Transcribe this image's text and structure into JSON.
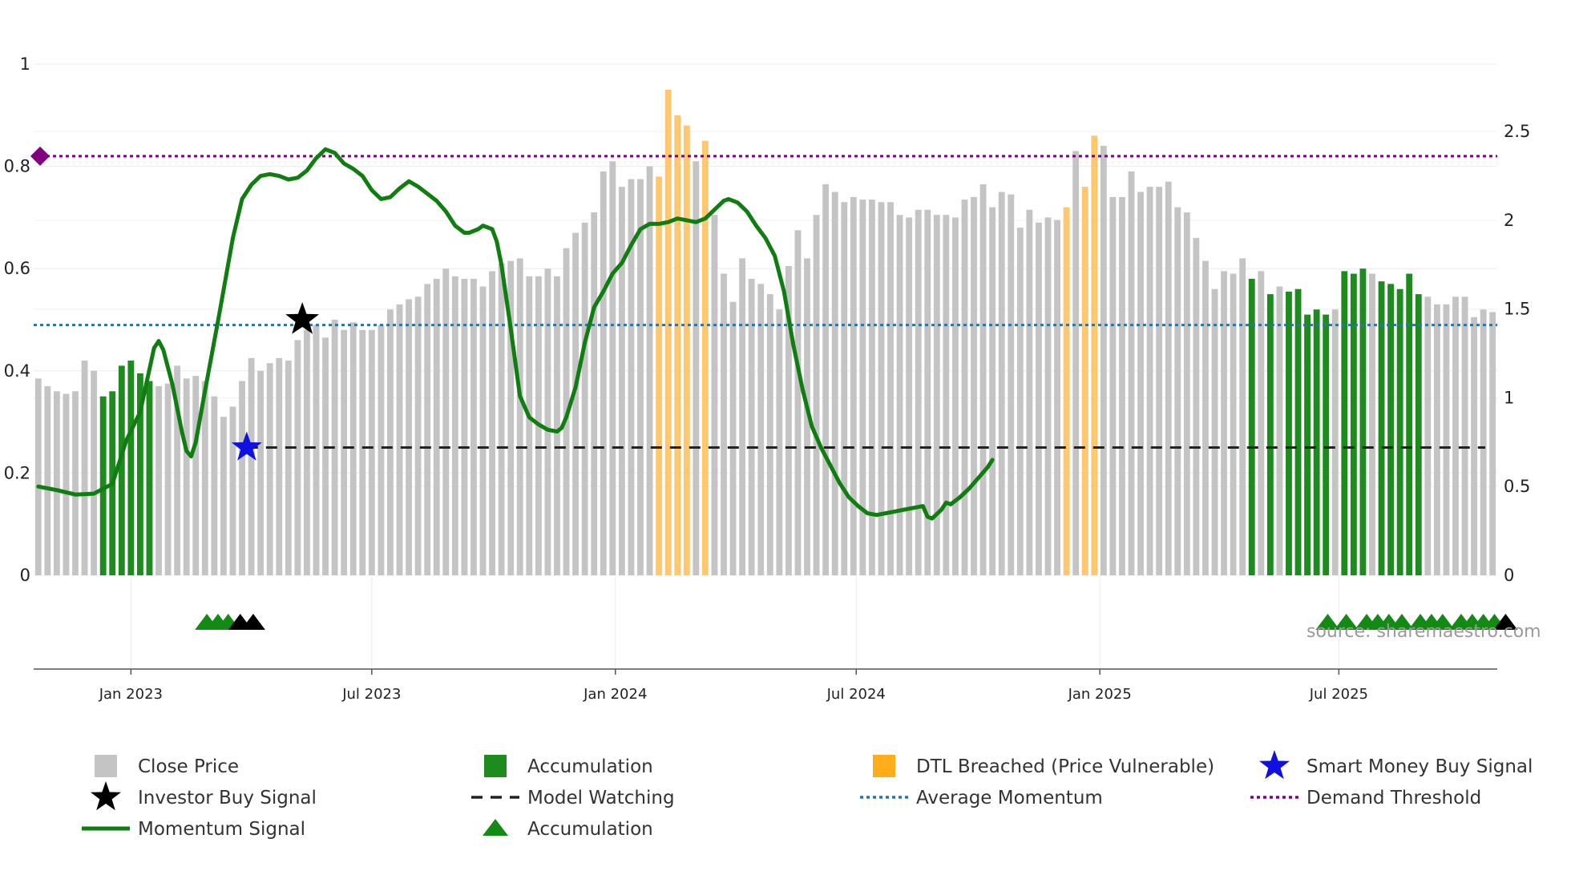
{
  "chart_data": {
    "type": "bar",
    "source": "source: sharemaestro.com",
    "left_axis": {
      "ylim": [
        0,
        1
      ],
      "ticks": [
        "0",
        "0.2",
        "0.4",
        "0.6",
        "0.8",
        "1"
      ],
      "tick_values": [
        0,
        0.2,
        0.4,
        0.6,
        0.8,
        1
      ]
    },
    "right_axis": {
      "ylim": [
        0,
        2.88
      ],
      "ticks": [
        "0",
        "0.5",
        "1",
        "1.5",
        "2",
        "2.5"
      ],
      "tick_values": [
        0,
        0.5,
        1,
        1.5,
        2,
        2.5
      ]
    },
    "x_axis": {
      "start_week_offset": -10,
      "end_week_offset": 150,
      "ticks": [
        {
          "label": "Jan 2023",
          "week": 0
        },
        {
          "label": "Jul 2023",
          "week": 26
        },
        {
          "label": "Jan 2024",
          "week": 52.3
        },
        {
          "label": "Jul 2024",
          "week": 78.3
        },
        {
          "label": "Jan 2025",
          "week": 104.6
        },
        {
          "label": "Jul 2025",
          "week": 130.4
        }
      ]
    },
    "close_price": [
      0.385,
      0.37,
      0.36,
      0.355,
      0.36,
      0.42,
      0.4,
      0.35,
      0.36,
      0.41,
      0.42,
      0.395,
      0.38,
      0.37,
      0.375,
      0.41,
      0.385,
      0.39,
      0.38,
      0.35,
      0.31,
      0.33,
      0.38,
      0.425,
      0.4,
      0.415,
      0.425,
      0.42,
      0.46,
      0.48,
      0.49,
      0.465,
      0.5,
      0.48,
      0.495,
      0.48,
      0.48,
      0.49,
      0.52,
      0.53,
      0.54,
      0.545,
      0.57,
      0.58,
      0.6,
      0.585,
      0.58,
      0.58,
      0.565,
      0.595,
      0.61,
      0.615,
      0.62,
      0.585,
      0.585,
      0.6,
      0.585,
      0.64,
      0.67,
      0.69,
      0.71,
      0.79,
      0.81,
      0.76,
      0.775,
      0.775,
      0.8,
      0.78,
      0.95,
      0.9,
      0.88,
      0.81,
      0.85,
      0.705,
      0.59,
      0.535,
      0.62,
      0.58,
      0.57,
      0.55,
      0.52,
      0.605,
      0.675,
      0.62,
      0.705,
      0.765,
      0.75,
      0.73,
      0.74,
      0.735,
      0.735,
      0.73,
      0.73,
      0.705,
      0.7,
      0.715,
      0.715,
      0.705,
      0.705,
      0.7,
      0.735,
      0.74,
      0.765,
      0.72,
      0.75,
      0.745,
      0.68,
      0.715,
      0.69,
      0.7,
      0.695,
      0.72,
      0.83,
      0.76,
      0.86,
      0.84,
      0.74,
      0.74,
      0.79,
      0.75,
      0.76,
      0.76,
      0.77,
      0.72,
      0.71,
      0.66,
      0.615,
      0.56,
      0.595,
      0.59,
      0.62,
      0.58,
      0.595,
      0.55,
      0.565,
      0.555,
      0.56,
      0.51,
      0.52,
      0.51,
      0.52,
      0.595,
      0.59,
      0.6,
      0.59,
      0.575,
      0.57,
      0.56,
      0.59,
      0.55,
      0.545,
      0.53,
      0.53,
      0.545,
      0.545,
      0.505,
      0.52,
      0.515
    ],
    "accumulation_weeks": [
      7,
      8,
      9,
      10,
      11,
      12,
      131,
      133,
      135,
      136,
      137,
      138,
      139,
      141,
      142,
      143,
      145,
      146,
      147,
      148,
      149
    ],
    "dtl_breached_weeks": [
      67,
      68,
      69,
      70,
      72,
      111,
      113,
      114
    ],
    "momentum_signal": [
      [
        0,
        0.5
      ],
      [
        4,
        0.48
      ],
      [
        8,
        0.455
      ],
      [
        12,
        0.46
      ],
      [
        16,
        0.515
      ],
      [
        19,
        0.76
      ],
      [
        22,
        0.92
      ],
      [
        25,
        1.28
      ],
      [
        26,
        1.32
      ],
      [
        27,
        1.27
      ],
      [
        29,
        1.07
      ],
      [
        31,
        0.81
      ],
      [
        32,
        0.7
      ],
      [
        33,
        0.67
      ],
      [
        34,
        0.75
      ],
      [
        36,
        1.04
      ],
      [
        39,
        1.46
      ],
      [
        42,
        1.9
      ],
      [
        44,
        2.12
      ],
      [
        46,
        2.2
      ],
      [
        48,
        2.25
      ],
      [
        50,
        2.26
      ],
      [
        52,
        2.25
      ],
      [
        54,
        2.23
      ],
      [
        56,
        2.24
      ],
      [
        58,
        2.28
      ],
      [
        60,
        2.35
      ],
      [
        62,
        2.4
      ],
      [
        64,
        2.38
      ],
      [
        66,
        2.32
      ],
      [
        68,
        2.29
      ],
      [
        70,
        2.25
      ],
      [
        72,
        2.17
      ],
      [
        74,
        2.12
      ],
      [
        76,
        2.13
      ],
      [
        78,
        2.18
      ],
      [
        80,
        2.22
      ],
      [
        82,
        2.19
      ],
      [
        84,
        2.15
      ],
      [
        86,
        2.11
      ],
      [
        88,
        2.05
      ],
      [
        90,
        1.97
      ],
      [
        92,
        1.93
      ],
      [
        93,
        1.93
      ],
      [
        95,
        1.95
      ],
      [
        96,
        1.97
      ],
      [
        98,
        1.95
      ],
      [
        99,
        1.88
      ],
      [
        100,
        1.75
      ],
      [
        102,
        1.39
      ],
      [
        104,
        1.01
      ],
      [
        106,
        0.89
      ],
      [
        108,
        0.85
      ],
      [
        110,
        0.82
      ],
      [
        112,
        0.81
      ],
      [
        113,
        0.83
      ],
      [
        114,
        0.89
      ],
      [
        116,
        1.06
      ],
      [
        118,
        1.31
      ],
      [
        120,
        1.51
      ],
      [
        122,
        1.6
      ],
      [
        124,
        1.7
      ],
      [
        126,
        1.76
      ],
      [
        128,
        1.86
      ],
      [
        130,
        1.95
      ],
      [
        132,
        1.98
      ],
      [
        134,
        1.98
      ],
      [
        136,
        1.99
      ],
      [
        138,
        2.01
      ],
      [
        140,
        2.0
      ],
      [
        142,
        1.99
      ],
      [
        144,
        2.01
      ],
      [
        146,
        2.06
      ],
      [
        148,
        2.11
      ],
      [
        149,
        2.12
      ],
      [
        151,
        2.1
      ],
      [
        153,
        2.05
      ],
      [
        155,
        1.97
      ],
      [
        157,
        1.9
      ],
      [
        159,
        1.8
      ],
      [
        161,
        1.6
      ],
      [
        163,
        1.3
      ],
      [
        165,
        1.05
      ],
      [
        167,
        0.84
      ],
      [
        169,
        0.72
      ],
      [
        171,
        0.62
      ],
      [
        173,
        0.52
      ],
      [
        175,
        0.44
      ],
      [
        177,
        0.39
      ],
      [
        179,
        0.35
      ],
      [
        181,
        0.34
      ],
      [
        183,
        0.35
      ],
      [
        185,
        0.36
      ],
      [
        187,
        0.37
      ],
      [
        189,
        0.38
      ],
      [
        191,
        0.39
      ],
      [
        192,
        0.33
      ],
      [
        193,
        0.32
      ],
      [
        195,
        0.37
      ],
      [
        196,
        0.41
      ],
      [
        197,
        0.4
      ],
      [
        199,
        0.44
      ],
      [
        201,
        0.49
      ],
      [
        203,
        0.55
      ],
      [
        205,
        0.61
      ],
      [
        206,
        0.65
      ]
    ],
    "momentum_x_scale": "half_week",
    "average_momentum": 1.41,
    "demand_threshold": 0.82,
    "model_watching": 0.72,
    "investor_buy_signal": {
      "week": 18,
      "value": 0.5
    },
    "smart_money_buy_signal": {
      "week": 12.5,
      "value": 0.25
    },
    "accumulation_triangles": [
      {
        "week": 8.2,
        "color": "#138a13"
      },
      {
        "week": 9.4,
        "color": "#138a13"
      },
      {
        "week": 10.5,
        "color": "#138a13"
      },
      {
        "week": 11.8,
        "color": "#000000"
      },
      {
        "week": 13.2,
        "color": "#000000"
      },
      {
        "week": 129.2,
        "color": "#138a13"
      },
      {
        "week": 131.2,
        "color": "#138a13"
      },
      {
        "week": 133.4,
        "color": "#138a13"
      },
      {
        "week": 134.6,
        "color": "#138a13"
      },
      {
        "week": 135.8,
        "color": "#138a13"
      },
      {
        "week": 137.2,
        "color": "#138a13"
      },
      {
        "week": 139.2,
        "color": "#138a13"
      },
      {
        "week": 140.4,
        "color": "#138a13"
      },
      {
        "week": 141.6,
        "color": "#138a13"
      },
      {
        "week": 143.6,
        "color": "#138a13"
      },
      {
        "week": 144.8,
        "color": "#138a13"
      },
      {
        "week": 146.0,
        "color": "#138a13"
      },
      {
        "week": 147.2,
        "color": "#138a13"
      },
      {
        "week": 148.4,
        "color": "#000000"
      }
    ],
    "legend": [
      {
        "key": "close",
        "label": "Close Price"
      },
      {
        "key": "accum_bar",
        "label": "Accumulation"
      },
      {
        "key": "dtl",
        "label": "DTL Breached (Price Vulnerable)"
      },
      {
        "key": "smart",
        "label": "Smart Money Buy Signal"
      },
      {
        "key": "investor",
        "label": "Investor Buy Signal"
      },
      {
        "key": "watch",
        "label": "Model Watching"
      },
      {
        "key": "avg",
        "label": "Average Momentum"
      },
      {
        "key": "demand",
        "label": "Demand Threshold"
      },
      {
        "key": "momentum",
        "label": "Momentum Signal"
      },
      {
        "key": "accum_tri",
        "label": "Accumulation"
      }
    ],
    "colors": {
      "close": "#c4c4c4",
      "accumulation": "#1e8b1e",
      "dtl": "#ffc870",
      "dtl_legend": "#ffad1a",
      "momentum": "#0f7d0f",
      "average": "#2f73a3",
      "demand": "#800080",
      "watch": "#222222",
      "smart": "#1010e0",
      "investor": "#000000",
      "triangle": "#138a13"
    }
  }
}
